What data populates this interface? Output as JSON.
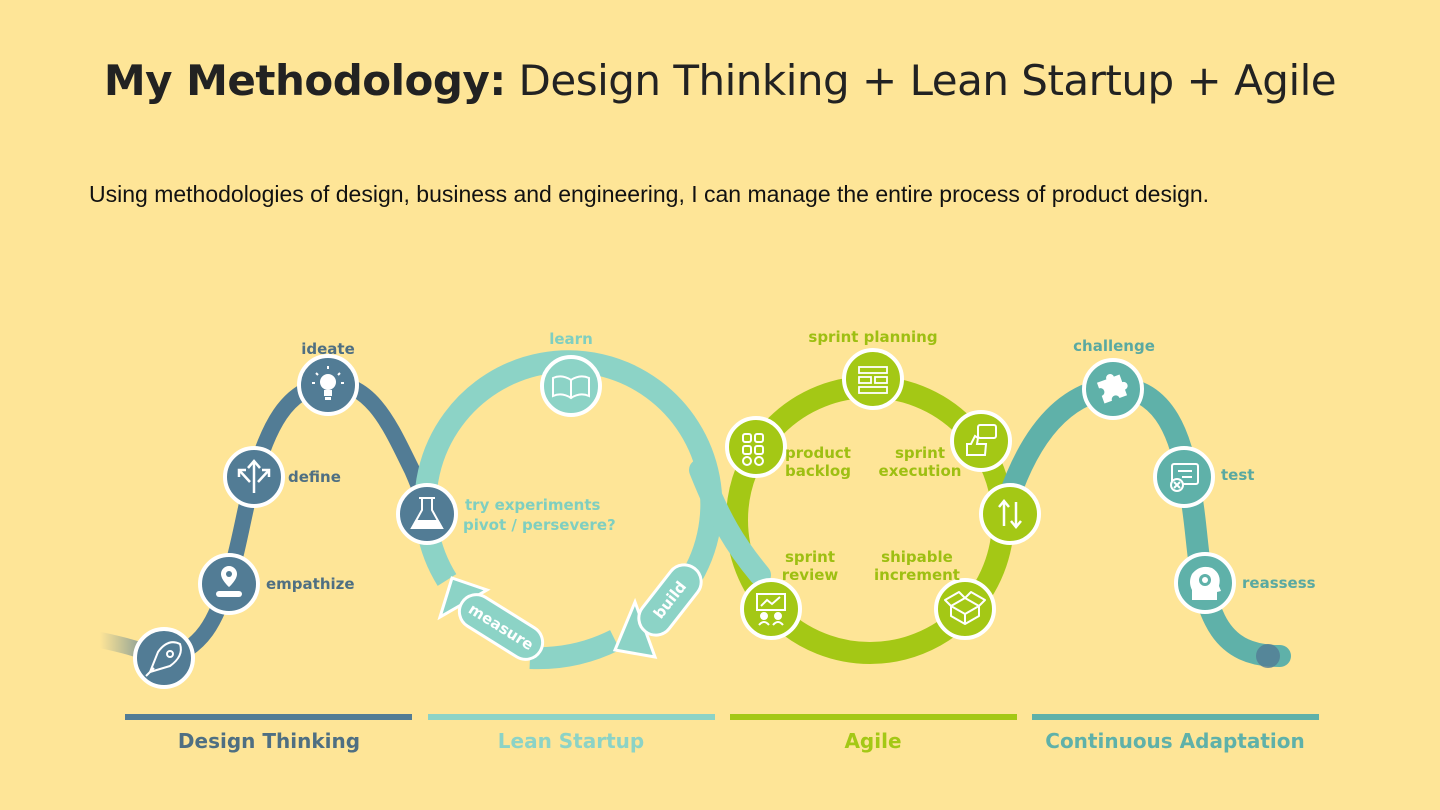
{
  "header": {
    "title_bold": "My Methodology:",
    "title_rest": " Design Thinking + Lean Startup + Agile",
    "subtitle": "Using methodologies of design, business and engineering, I can manage the entire process of product design."
  },
  "colors": {
    "background": "#fee597",
    "design_thinking": "#527c95",
    "lean_startup": "#8cd3c6",
    "agile": "#a4c815",
    "continuous_adaptation": "#5fb1a9"
  },
  "design_thinking": {
    "steps": [
      {
        "label": "",
        "icon": "rocket-icon"
      },
      {
        "label": "empathize",
        "icon": "person-pin-icon"
      },
      {
        "label": "define",
        "icon": "diverging-arrows-icon"
      },
      {
        "label": "ideate",
        "icon": "lightbulb-icon"
      }
    ]
  },
  "lean_startup": {
    "learn": "learn",
    "experiment_line1": "try experiments",
    "experiment_line2": "pivot / persevere?",
    "build": "build",
    "measure": "measure",
    "icons": [
      "book-icon",
      "flask-icon"
    ]
  },
  "agile": {
    "sprint_planning": "sprint planning",
    "product_backlog_1": "product",
    "product_backlog_2": "backlog",
    "sprint_execution_1": "sprint",
    "sprint_execution_2": "execution",
    "sprint_review_1": "sprint",
    "sprint_review_2": "review",
    "shipable_1": "shipable",
    "shipable_2": "increment",
    "icons": [
      "board-icon",
      "grid-icon",
      "thumbs-up-icon",
      "presentation-icon",
      "box-icon",
      "swap-arrows-icon"
    ]
  },
  "continuous_adaptation": {
    "challenge": "challenge",
    "test": "test",
    "reassess": "reassess",
    "icons": [
      "puzzle-icon",
      "checklist-icon",
      "head-gear-icon"
    ]
  },
  "phases": [
    {
      "label": "Design Thinking"
    },
    {
      "label": "Lean Startup"
    },
    {
      "label": "Agile"
    },
    {
      "label": "Continuous Adaptation"
    }
  ]
}
